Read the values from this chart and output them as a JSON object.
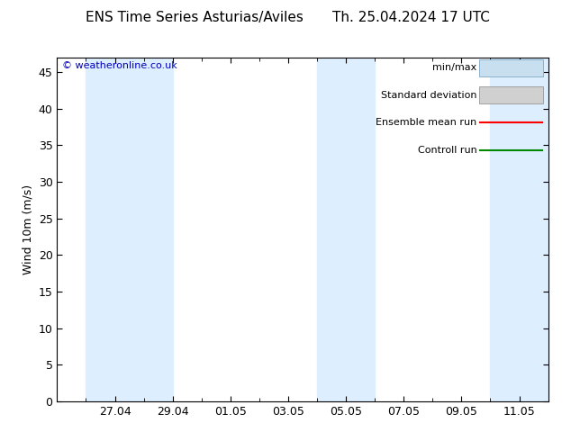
{
  "title": "ENS Time Series Asturias/Aviles",
  "title_right": "Th. 25.04.2024 17 UTC",
  "ylabel": "Wind 10m (m/s)",
  "watermark": "© weatheronline.co.uk",
  "background_color": "#ffffff",
  "plot_bg_color": "#ffffff",
  "shaded_band_color": "#ddeeff",
  "ylim": [
    0,
    47
  ],
  "yticks": [
    0,
    5,
    10,
    15,
    20,
    25,
    30,
    35,
    40,
    45
  ],
  "xlim": [
    0,
    17
  ],
  "x_tick_labels": [
    "27.04",
    "29.04",
    "01.05",
    "03.05",
    "05.05",
    "07.05",
    "09.05",
    "11.05"
  ],
  "x_tick_positions": [
    2,
    4,
    6,
    8,
    10,
    12,
    14,
    16
  ],
  "shaded_regions": [
    [
      1.0,
      3.0
    ],
    [
      3.0,
      4.0
    ],
    [
      9.0,
      11.0
    ],
    [
      15.0,
      17.0
    ]
  ],
  "legend_items": [
    {
      "label": "min/max",
      "color": "#c8dff0",
      "type": "band",
      "edge_color": "#8ab0cc"
    },
    {
      "label": "Standard deviation",
      "color": "#d0d0d0",
      "type": "band",
      "edge_color": "#a0a0a0"
    },
    {
      "label": "Ensemble mean run",
      "color": "#ff0000",
      "type": "line"
    },
    {
      "label": "Controll run",
      "color": "#008800",
      "type": "line"
    }
  ],
  "tick_color": "#000000",
  "spine_color": "#000000",
  "font_size": 9,
  "title_font_size": 11,
  "legend_font_size": 8
}
